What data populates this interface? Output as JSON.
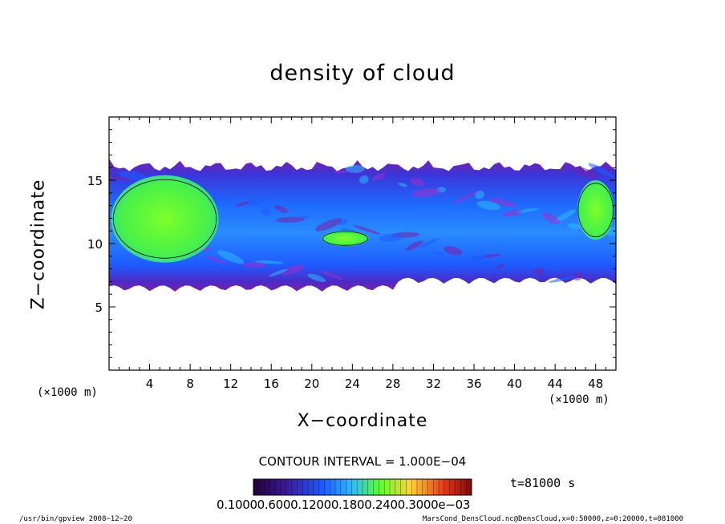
{
  "chart_data": {
    "type": "heatmap",
    "title": "density of cloud",
    "xlabel": "X−coordinate",
    "ylabel": "Z−coordinate",
    "x_unit": "(×1000 m)",
    "x_ticks": [
      4,
      8,
      12,
      16,
      20,
      24,
      28,
      32,
      36,
      40,
      44,
      48
    ],
    "y_ticks": [
      5,
      10,
      15
    ],
    "xlim": [
      0,
      50
    ],
    "ylim": [
      0,
      20
    ],
    "grid": false,
    "contour_interval": "CONTOUR INTERVAL = 1.000E−04",
    "time_label": "t=81000 s",
    "colorbar_labels": "0.10000.6000.12000.1800.2400.3000e−03",
    "colors": {
      "purple": "#7a1fa8",
      "blue": "#1e5bff",
      "cyan": "#2fb8ff",
      "green": "#5cff2a",
      "yellow": "#ffd23a",
      "red": "#e23418"
    },
    "cloud_layer": {
      "z_bottom": 6.2,
      "z_top": 16.7,
      "green_cores": [
        {
          "x_from": 0.2,
          "x_to": 10.8,
          "z_from": 8.5,
          "z_to": 15.4
        },
        {
          "x_from": 21.0,
          "x_to": 25.6,
          "z_from": 9.8,
          "z_to": 11.0
        },
        {
          "x_from": 46.2,
          "x_to": 49.8,
          "z_from": 10.3,
          "z_to": 15.0
        }
      ]
    }
  },
  "footer": {
    "left": "/usr/bin/gpview   2008−12−20",
    "right": "MarsCond_DensCloud.nc@DensCloud,x=0:50000,z=0:20000,t=081000"
  }
}
